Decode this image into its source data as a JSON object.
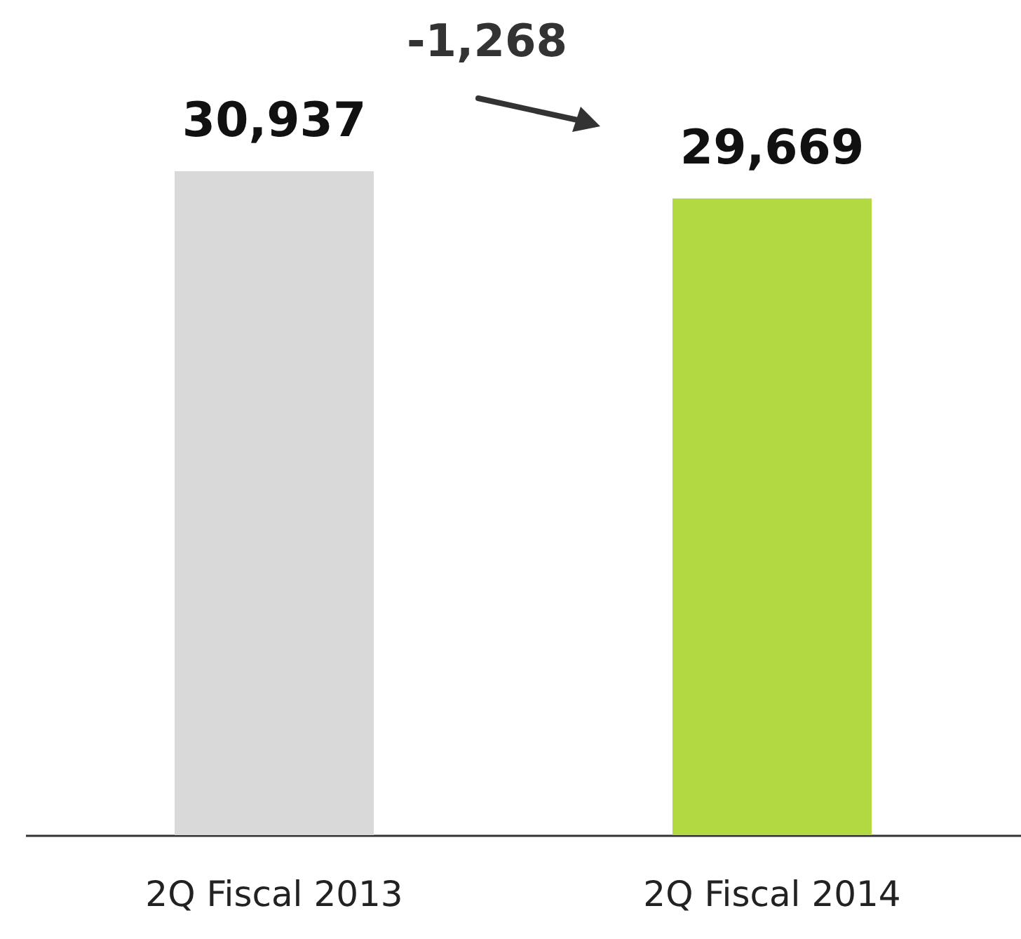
{
  "chart_data": {
    "type": "bar",
    "categories": [
      "2Q Fiscal 2013",
      "2Q Fiscal 2014"
    ],
    "values": [
      30937,
      29669
    ],
    "colors": [
      "#d9d9d9",
      "#b2d942"
    ],
    "data_labels": true,
    "value_labels": [
      "30,937",
      "29,669"
    ],
    "annotations": [
      "-1,268"
    ]
  }
}
